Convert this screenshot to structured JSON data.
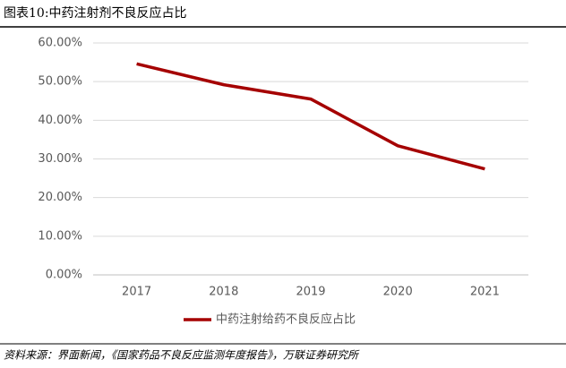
{
  "chart_data": {
    "type": "line",
    "title": "图表10:中药注射剂不良反应占比",
    "categories": [
      "2017",
      "2018",
      "2019",
      "2020",
      "2021"
    ],
    "series": [
      {
        "name": "中药注射给药不良反应占比",
        "color": "#a50000",
        "values": [
          54.6,
          49.2,
          45.5,
          33.4,
          27.4
        ]
      }
    ],
    "ylim": [
      0,
      60
    ],
    "yticks": [
      {
        "value": 0,
        "label": "0.00%"
      },
      {
        "value": 10,
        "label": "10.00%"
      },
      {
        "value": 20,
        "label": "20.00%"
      },
      {
        "value": 30,
        "label": "30.00%"
      },
      {
        "value": 40,
        "label": "40.00%"
      },
      {
        "value": 50,
        "label": "50.00%"
      },
      {
        "value": 60,
        "label": "60.00%"
      }
    ],
    "grid": true,
    "legend": "bottom",
    "source": "资料来源：界面新闻，《国家药品不良反应监测年度报告》，万联证券研究所"
  }
}
